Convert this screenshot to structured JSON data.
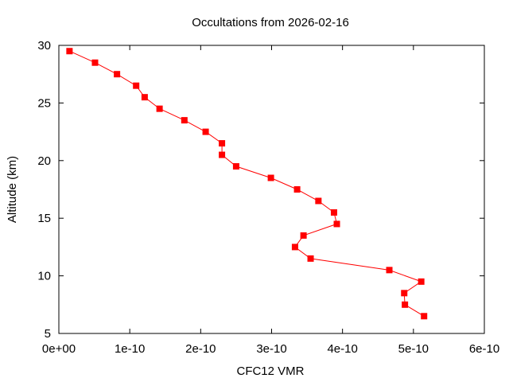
{
  "chart_data": {
    "type": "line",
    "title": "Occultations from 2026-02-16",
    "xlabel": "CFC12 VMR",
    "ylabel": "Altitude (km)",
    "xlim": [
      0,
      6e-10
    ],
    "ylim": [
      5,
      30
    ],
    "x_ticks": [
      0,
      1e-10,
      2e-10,
      3e-10,
      4e-10,
      5e-10,
      6e-10
    ],
    "x_tick_labels": [
      "0e+00",
      "1e-10",
      "2e-10",
      "3e-10",
      "4e-10",
      "5e-10",
      "6e-10"
    ],
    "y_ticks": [
      5,
      10,
      15,
      20,
      25,
      30
    ],
    "y_tick_labels": [
      "5",
      "10",
      "15",
      "20",
      "25",
      "30"
    ],
    "grid": false,
    "legend": null,
    "series": [
      {
        "name": "CFC12",
        "color": "#ff0000",
        "marker": "square",
        "points": [
          {
            "x": 1.5e-11,
            "y": 29.5
          },
          {
            "x": 5.1e-11,
            "y": 28.5
          },
          {
            "x": 8.2e-11,
            "y": 27.5
          },
          {
            "x": 1.09e-10,
            "y": 26.5
          },
          {
            "x": 1.21e-10,
            "y": 25.5
          },
          {
            "x": 1.42e-10,
            "y": 24.5
          },
          {
            "x": 1.77e-10,
            "y": 23.5
          },
          {
            "x": 2.07e-10,
            "y": 22.5
          },
          {
            "x": 2.3e-10,
            "y": 21.5
          },
          {
            "x": 2.3e-10,
            "y": 20.5
          },
          {
            "x": 2.5e-10,
            "y": 19.5
          },
          {
            "x": 2.99e-10,
            "y": 18.5
          },
          {
            "x": 3.36e-10,
            "y": 17.5
          },
          {
            "x": 3.66e-10,
            "y": 16.5
          },
          {
            "x": 3.88e-10,
            "y": 15.5
          },
          {
            "x": 3.92e-10,
            "y": 14.5
          },
          {
            "x": 3.45e-10,
            "y": 13.5
          },
          {
            "x": 3.33e-10,
            "y": 12.5
          },
          {
            "x": 3.55e-10,
            "y": 11.5
          },
          {
            "x": 4.66e-10,
            "y": 10.5
          },
          {
            "x": 5.11e-10,
            "y": 9.5
          },
          {
            "x": 4.87e-10,
            "y": 8.5
          },
          {
            "x": 4.88e-10,
            "y": 7.5
          },
          {
            "x": 5.15e-10,
            "y": 6.5
          }
        ]
      }
    ]
  }
}
